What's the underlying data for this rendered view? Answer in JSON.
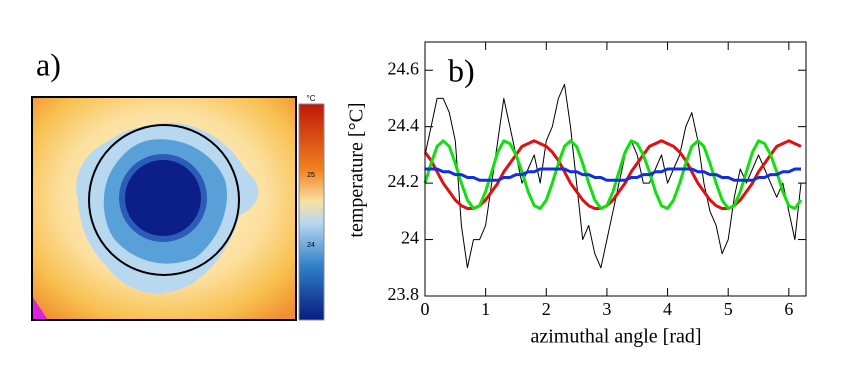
{
  "panel_a": {
    "label": "a)",
    "colorbar": {
      "unit": "°C",
      "labels": [
        "25",
        "24"
      ]
    }
  },
  "chart_data": {
    "type": "line",
    "label": "b)",
    "x_label": "azimuthal angle [rad]",
    "y_label": "temperature [°C]",
    "x": [
      0,
      0.1,
      0.2,
      0.3,
      0.4,
      0.5,
      0.6,
      0.7,
      0.8,
      0.9,
      1.0,
      1.1,
      1.2,
      1.3,
      1.4,
      1.5,
      1.6,
      1.7,
      1.8,
      1.9,
      2.0,
      2.1,
      2.2,
      2.3,
      2.4,
      2.5,
      2.6,
      2.7,
      2.8,
      2.9,
      3.0,
      3.1,
      3.2,
      3.3,
      3.4,
      3.5,
      3.6,
      3.7,
      3.8,
      3.9,
      4.0,
      4.1,
      4.2,
      4.3,
      4.4,
      4.5,
      4.6,
      4.7,
      4.8,
      4.9,
      5.0,
      5.1,
      5.2,
      5.3,
      5.4,
      5.5,
      5.6,
      5.7,
      5.8,
      5.9,
      6.0,
      6.1,
      6.2
    ],
    "series": [
      {
        "color": "#000000",
        "width": 1,
        "values": [
          24.3,
          24.4,
          24.5,
          24.5,
          24.45,
          24.35,
          24.05,
          23.9,
          24.0,
          24.0,
          24.05,
          24.2,
          24.35,
          24.5,
          24.4,
          24.3,
          24.2,
          24.25,
          24.3,
          24.2,
          24.35,
          24.4,
          24.5,
          24.55,
          24.4,
          24.2,
          24.0,
          24.05,
          23.95,
          23.9,
          24.0,
          24.1,
          24.2,
          24.3,
          24.35,
          24.3,
          24.2,
          24.2,
          24.25,
          24.3,
          24.2,
          24.25,
          24.3,
          24.4,
          24.45,
          24.35,
          24.2,
          24.1,
          24.05,
          23.95,
          24.0,
          24.15,
          24.25,
          24.2,
          24.25,
          24.3,
          24.25,
          24.2,
          24.15,
          24.2,
          24.1,
          24.0,
          24.2
        ]
      },
      {
        "color": "#e01010",
        "width": 3,
        "values": [
          24.31,
          24.28,
          24.24,
          24.2,
          24.17,
          24.14,
          24.12,
          24.11,
          24.11,
          24.12,
          24.14,
          24.17,
          24.2,
          24.24,
          24.27,
          24.3,
          24.33,
          24.34,
          24.35,
          24.34,
          24.33,
          24.31,
          24.28,
          24.24,
          24.2,
          24.17,
          24.14,
          24.12,
          24.11,
          24.11,
          24.12,
          24.14,
          24.17,
          24.2,
          24.24,
          24.27,
          24.3,
          24.33,
          24.34,
          24.35,
          24.34,
          24.33,
          24.31,
          24.28,
          24.24,
          24.2,
          24.17,
          24.14,
          24.12,
          24.11,
          24.11,
          24.12,
          24.14,
          24.17,
          24.2,
          24.24,
          24.27,
          24.3,
          24.33,
          24.34,
          24.35,
          24.34,
          24.33
        ]
      },
      {
        "color": "#10e010",
        "width": 3,
        "values": [
          24.2,
          24.27,
          24.33,
          24.35,
          24.33,
          24.27,
          24.2,
          24.14,
          24.11,
          24.12,
          24.17,
          24.24,
          24.31,
          24.35,
          24.34,
          24.3,
          24.24,
          24.17,
          24.12,
          24.11,
          24.14,
          24.2,
          24.27,
          24.33,
          24.35,
          24.33,
          24.27,
          24.2,
          24.14,
          24.11,
          24.12,
          24.17,
          24.24,
          24.31,
          24.35,
          24.34,
          24.3,
          24.24,
          24.17,
          24.12,
          24.11,
          24.14,
          24.2,
          24.27,
          24.33,
          24.35,
          24.33,
          24.27,
          24.2,
          24.14,
          24.11,
          24.12,
          24.17,
          24.24,
          24.31,
          24.35,
          24.34,
          24.3,
          24.24,
          24.17,
          24.12,
          24.11,
          24.14
        ]
      },
      {
        "color": "#1030e0",
        "width": 3,
        "values": [
          24.25,
          24.25,
          24.25,
          24.24,
          24.24,
          24.23,
          24.23,
          24.22,
          24.22,
          24.21,
          24.21,
          24.21,
          24.21,
          24.22,
          24.22,
          24.23,
          24.23,
          24.24,
          24.24,
          24.25,
          24.25,
          24.25,
          24.25,
          24.25,
          24.24,
          24.24,
          24.23,
          24.23,
          24.22,
          24.22,
          24.21,
          24.21,
          24.21,
          24.21,
          24.22,
          24.22,
          24.23,
          24.23,
          24.24,
          24.24,
          24.25,
          24.25,
          24.25,
          24.25,
          24.25,
          24.24,
          24.24,
          24.23,
          24.23,
          24.22,
          24.22,
          24.21,
          24.21,
          24.21,
          24.21,
          24.22,
          24.22,
          24.23,
          24.23,
          24.24,
          24.24,
          24.25,
          24.25
        ]
      }
    ],
    "xlim": [
      0,
      6.283
    ],
    "ylim": [
      23.8,
      24.7
    ],
    "xticks": [
      0,
      1,
      2,
      3,
      4,
      5,
      6
    ],
    "yticks": [
      23.8,
      24,
      24.2,
      24.4,
      24.6
    ]
  }
}
